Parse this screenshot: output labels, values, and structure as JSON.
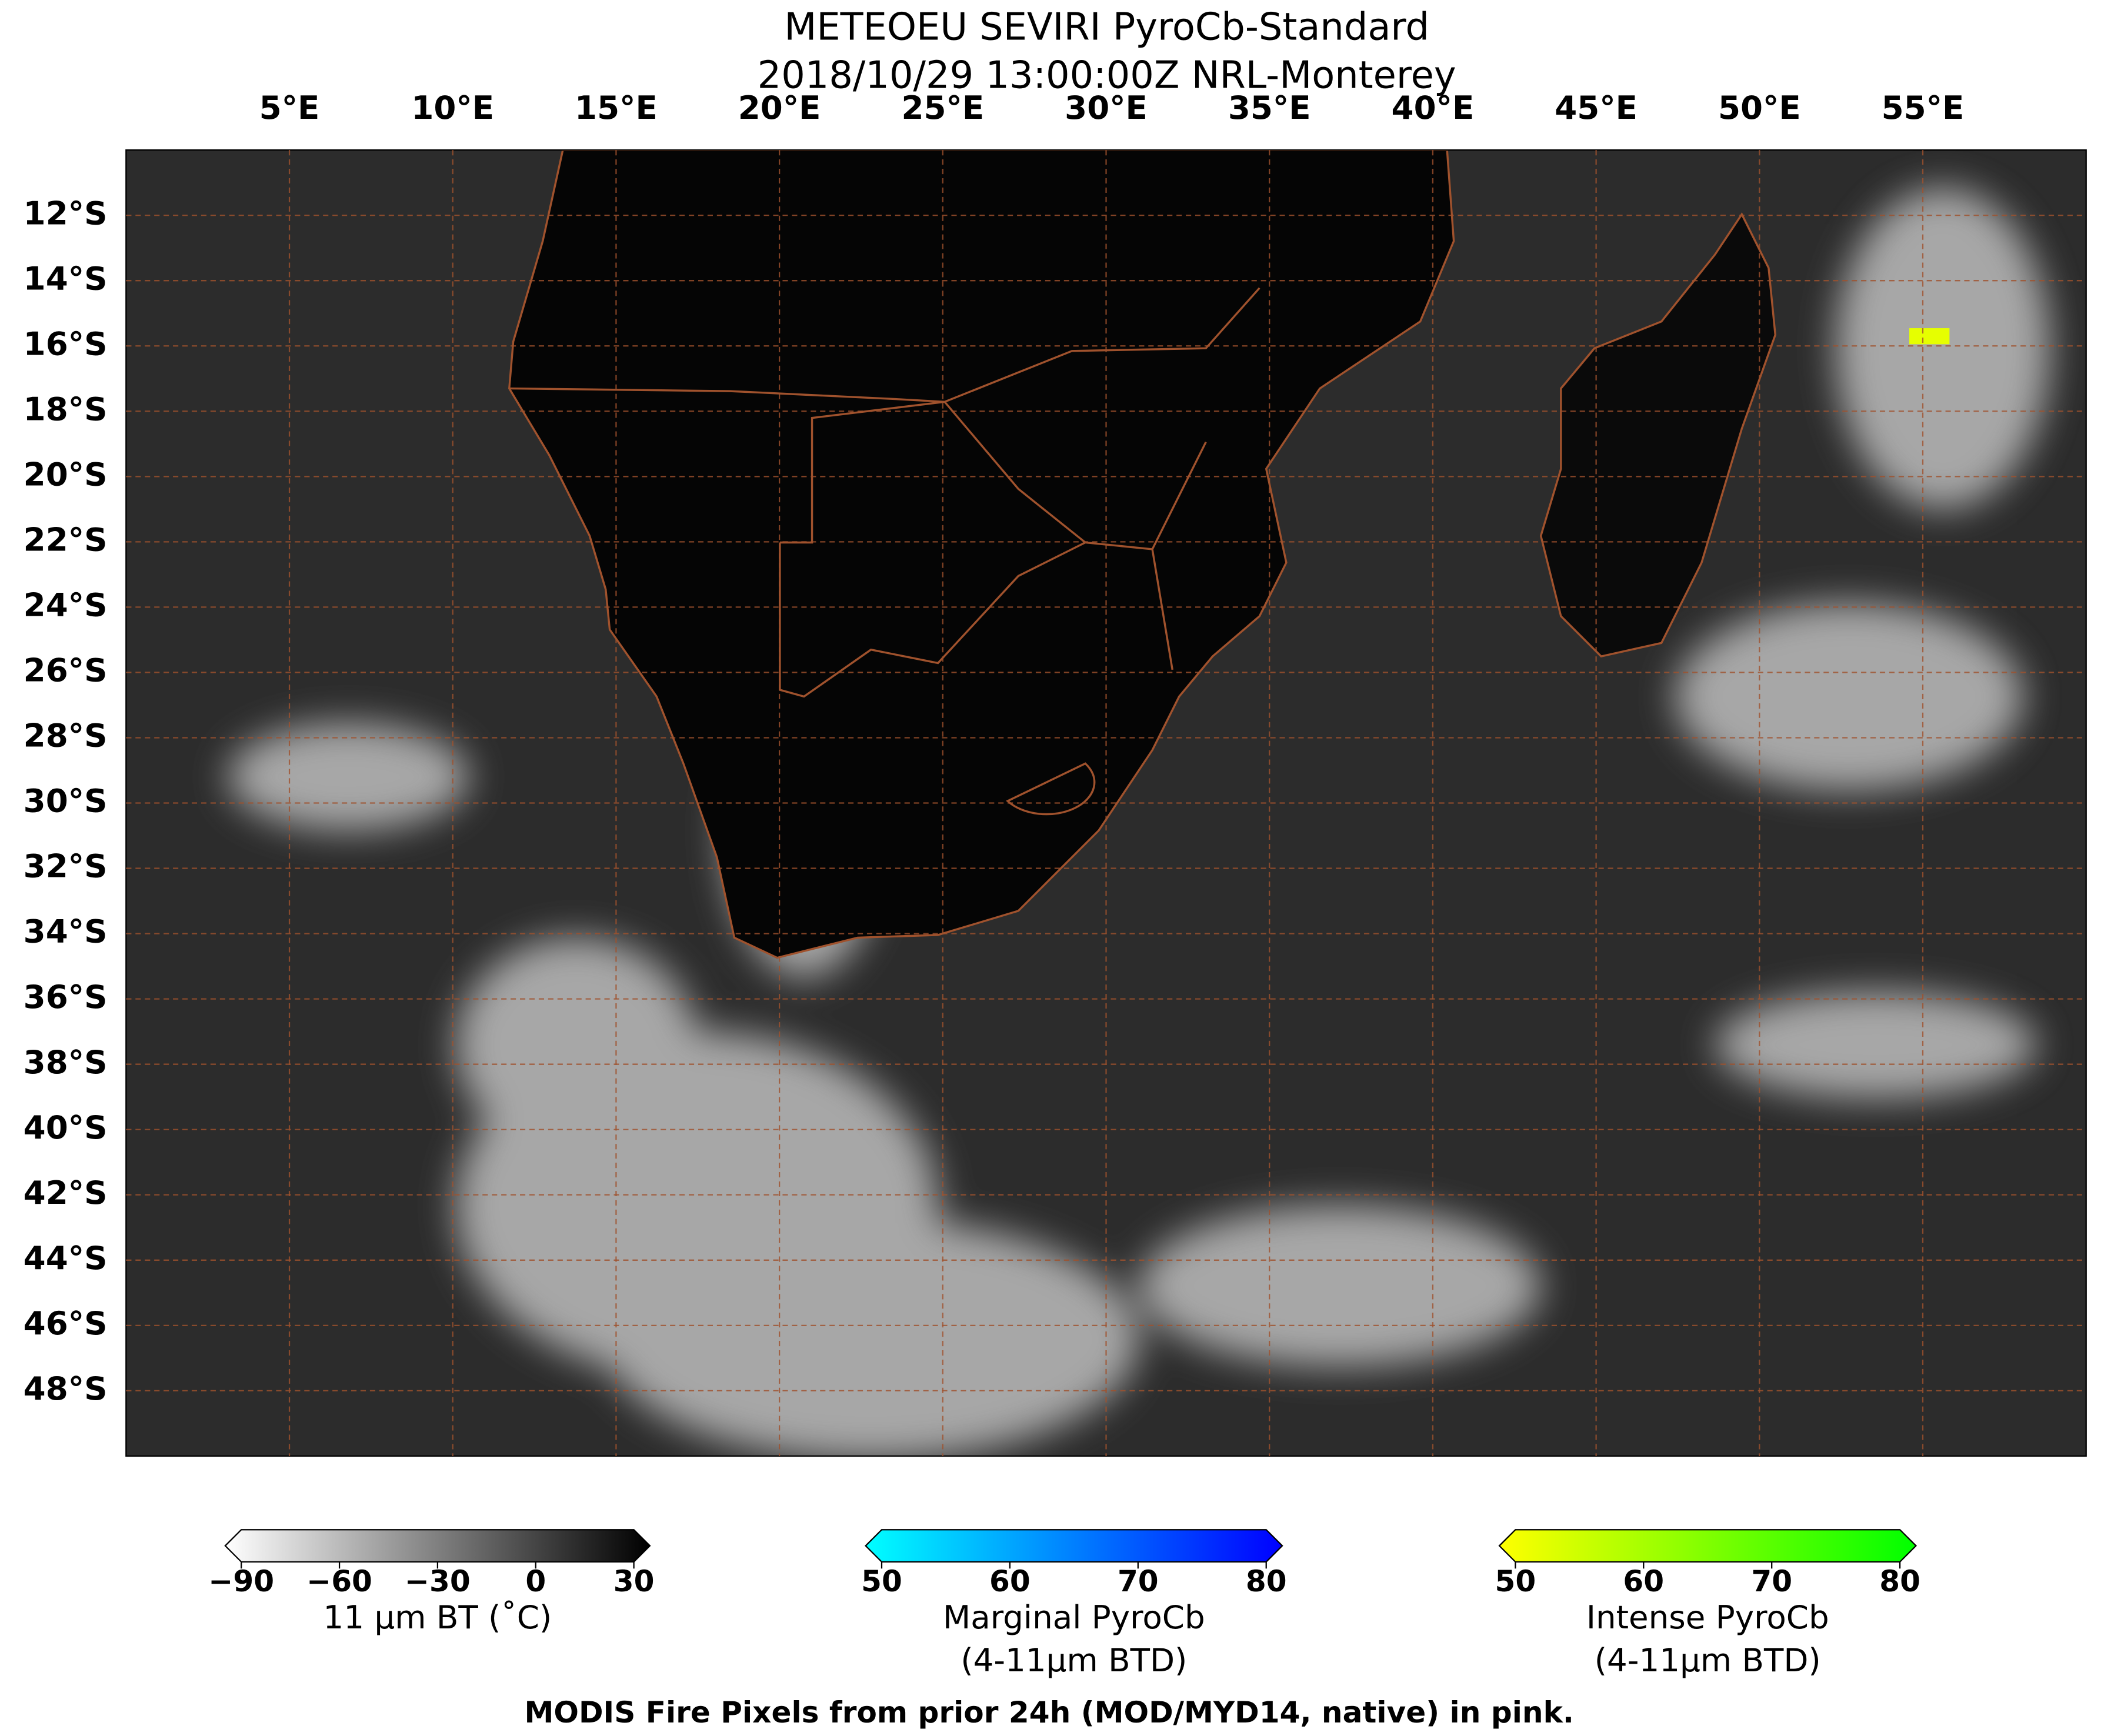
{
  "title": [
    "METEOEU SEVIRI PyroCb-Standard",
    "2018/10/29 13:00:00Z NRL-Monterey"
  ],
  "map": {
    "lon_range": [
      0,
      60
    ],
    "lat_range": [
      -10,
      -50
    ],
    "lon_ticks": [
      {
        "value": 5,
        "label": "5°E"
      },
      {
        "value": 10,
        "label": "10°E"
      },
      {
        "value": 15,
        "label": "15°E"
      },
      {
        "value": 20,
        "label": "20°E"
      },
      {
        "value": 25,
        "label": "25°E"
      },
      {
        "value": 30,
        "label": "30°E"
      },
      {
        "value": 35,
        "label": "35°E"
      },
      {
        "value": 40,
        "label": "40°E"
      },
      {
        "value": 45,
        "label": "45°E"
      },
      {
        "value": 50,
        "label": "50°E"
      },
      {
        "value": 55,
        "label": "55°E"
      }
    ],
    "lat_ticks": [
      {
        "value": -12,
        "label": "12°S"
      },
      {
        "value": -14,
        "label": "14°S"
      },
      {
        "value": -16,
        "label": "16°S"
      },
      {
        "value": -18,
        "label": "18°S"
      },
      {
        "value": -20,
        "label": "20°S"
      },
      {
        "value": -22,
        "label": "22°S"
      },
      {
        "value": -24,
        "label": "24°S"
      },
      {
        "value": -26,
        "label": "26°S"
      },
      {
        "value": -28,
        "label": "28°S"
      },
      {
        "value": -30,
        "label": "30°S"
      },
      {
        "value": -32,
        "label": "32°S"
      },
      {
        "value": -34,
        "label": "34°S"
      },
      {
        "value": -36,
        "label": "36°S"
      },
      {
        "value": -38,
        "label": "38°S"
      },
      {
        "value": -40,
        "label": "40°S"
      },
      {
        "value": -42,
        "label": "42°S"
      },
      {
        "value": -44,
        "label": "44°S"
      },
      {
        "value": -46,
        "label": "46°S"
      },
      {
        "value": -48,
        "label": "48°S"
      }
    ]
  },
  "colorbars": [
    {
      "range": [
        -90,
        30
      ],
      "colors": [
        "#ffffff",
        "#000000"
      ],
      "label": [
        "11 µm BT (˚C)"
      ],
      "ticks": [
        {
          "value": -90,
          "label": "−90"
        },
        {
          "value": -60,
          "label": "−60"
        },
        {
          "value": -30,
          "label": "−30"
        },
        0,
        30
      ]
    },
    {
      "range": [
        50,
        80
      ],
      "colors": [
        "#00ffff",
        "#0000ff"
      ],
      "label": [
        "Marginal PyroCb",
        "(4-11µm BTD)"
      ],
      "ticks": [
        50,
        60,
        70,
        80
      ]
    },
    {
      "range": [
        50,
        80
      ],
      "colors": [
        "#ffff00",
        "#00ff00"
      ],
      "label": [
        "Intense PyroCb",
        "(4-11µm BTD)"
      ],
      "ticks": [
        50,
        60,
        70,
        80
      ]
    }
  ],
  "footer": "MODIS Fire Pixels from prior 24h (MOD/MYD14, native) in pink."
}
